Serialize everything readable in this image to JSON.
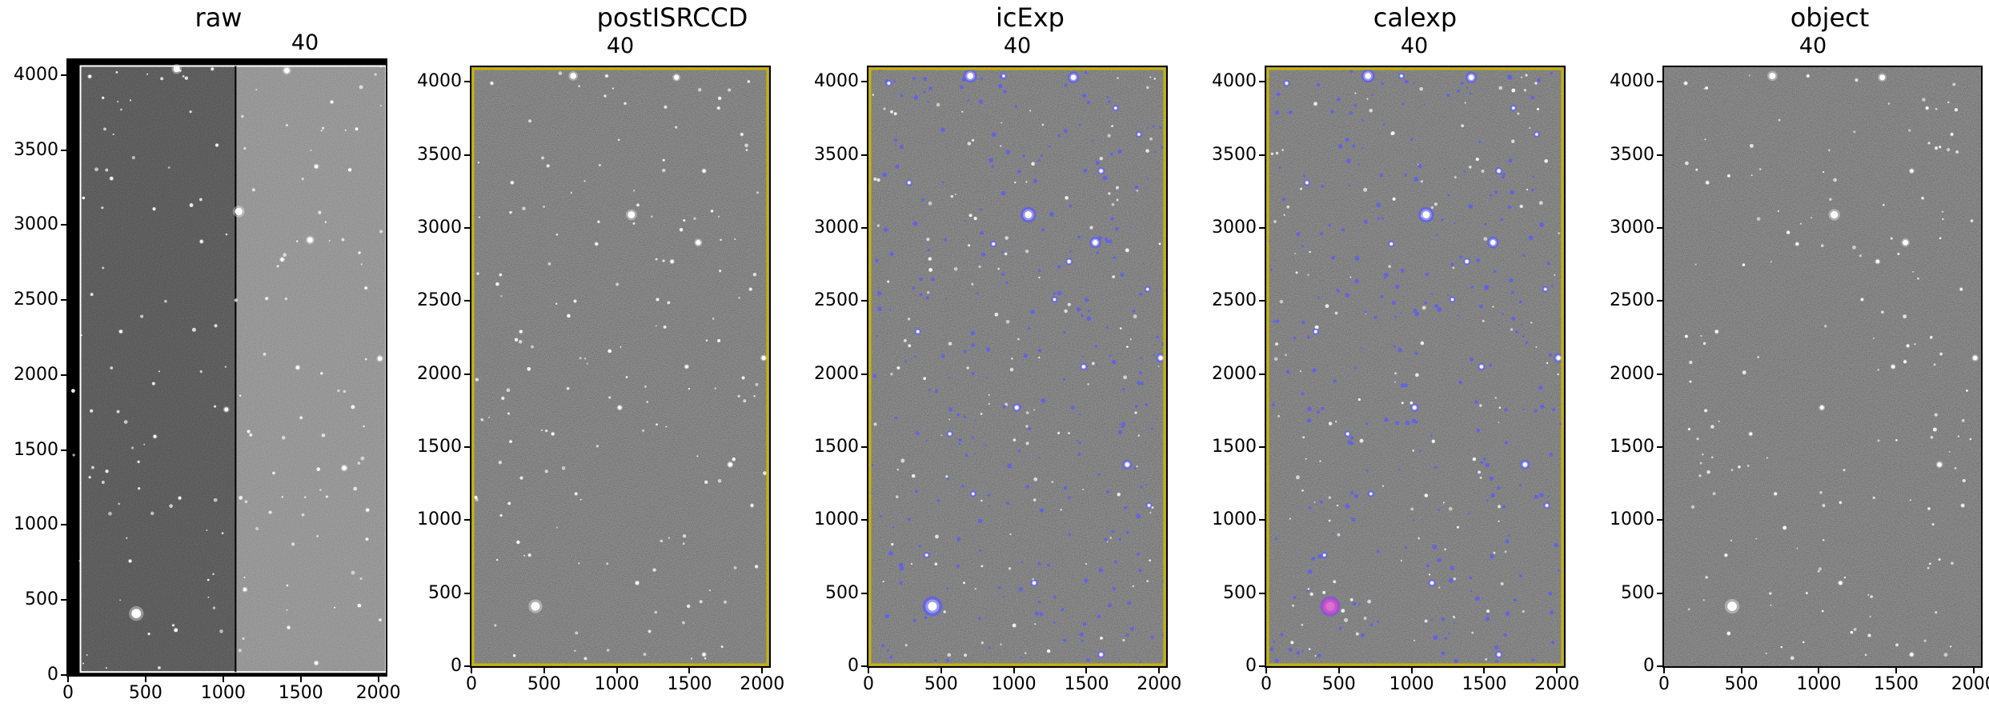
{
  "figure": {
    "panels": [
      {
        "id": "raw",
        "title": "raw",
        "ccd_label": "40",
        "x_ticks": [
          "0",
          "500",
          "1000",
          "1500",
          "2000"
        ],
        "y_ticks": [
          "0",
          "500",
          "1000",
          "1500",
          "2000",
          "2500",
          "3000",
          "3500",
          "4000"
        ],
        "overlay": "none",
        "background": "split-amplifiers"
      },
      {
        "id": "postISRCCD",
        "title": "postISRCCD",
        "ccd_label": "40",
        "x_ticks": [
          "0",
          "500",
          "1000",
          "1500",
          "2000"
        ],
        "y_ticks": [
          "0",
          "500",
          "1000",
          "1500",
          "2000",
          "2500",
          "3000",
          "3500",
          "4000"
        ],
        "overlay": "yellow-border",
        "background": "noise"
      },
      {
        "id": "icExp",
        "title": "icExp",
        "ccd_label": "40",
        "x_ticks": [
          "0",
          "500",
          "1000",
          "1500",
          "2000"
        ],
        "y_ticks": [
          "0",
          "500",
          "1000",
          "1500",
          "2000",
          "2500",
          "3000",
          "3500",
          "4000"
        ],
        "overlay": "blue-detections",
        "background": "noise"
      },
      {
        "id": "calexp",
        "title": "calexp",
        "ccd_label": "40",
        "x_ticks": [
          "0",
          "500",
          "1000",
          "1500",
          "2000"
        ],
        "y_ticks": [
          "0",
          "500",
          "1000",
          "1500",
          "2000",
          "2500",
          "3000",
          "3500",
          "4000"
        ],
        "overlay": "blue-detections-plus-magenta",
        "background": "noise"
      },
      {
        "id": "object",
        "title": "object",
        "ccd_label": "40",
        "x_ticks": [
          "0",
          "500",
          "1000",
          "1500",
          "2000"
        ],
        "y_ticks": [
          "0",
          "500",
          "1000",
          "1500",
          "2000",
          "2500",
          "3000",
          "3500",
          "4000"
        ],
        "overlay": "none",
        "background": "noise"
      }
    ],
    "axis_range": {
      "x": [
        0,
        2048
      ],
      "y": [
        0,
        4100
      ]
    },
    "colors": {
      "detection_mask": "#5a5aff",
      "edge_mask": "#c8b400",
      "saturated_mask": "#d040c0",
      "sky_dark": "#3a3a3a",
      "sky_light": "#8a8a8a"
    },
    "stars": [
      {
        "x": 440,
        "y": 410,
        "r": 38
      },
      {
        "x": 1100,
        "y": 3090,
        "r": 30
      },
      {
        "x": 700,
        "y": 4040,
        "r": 26
      },
      {
        "x": 1410,
        "y": 4030,
        "r": 22
      },
      {
        "x": 1560,
        "y": 2900,
        "r": 22
      },
      {
        "x": 2010,
        "y": 2110,
        "r": 18
      },
      {
        "x": 1780,
        "y": 1380,
        "r": 18
      },
      {
        "x": 1020,
        "y": 1770,
        "r": 16
      },
      {
        "x": 1380,
        "y": 2770,
        "r": 14
      },
      {
        "x": 1600,
        "y": 3390,
        "r": 14
      },
      {
        "x": 1140,
        "y": 570,
        "r": 14
      },
      {
        "x": 1600,
        "y": 80,
        "r": 14
      },
      {
        "x": 1480,
        "y": 2050,
        "r": 14
      },
      {
        "x": 280,
        "y": 3310,
        "r": 12
      },
      {
        "x": 560,
        "y": 1590,
        "r": 12
      },
      {
        "x": 860,
        "y": 2890,
        "r": 12
      },
      {
        "x": 1930,
        "y": 1100,
        "r": 12
      },
      {
        "x": 340,
        "y": 2290,
        "r": 12
      },
      {
        "x": 140,
        "y": 3990,
        "r": 12
      },
      {
        "x": 720,
        "y": 1180,
        "r": 11
      },
      {
        "x": 1700,
        "y": 3820,
        "r": 11
      },
      {
        "x": 400,
        "y": 760,
        "r": 11
      },
      {
        "x": 1280,
        "y": 2510,
        "r": 10
      },
      {
        "x": 1860,
        "y": 3640,
        "r": 10
      },
      {
        "x": 1920,
        "y": 2580,
        "r": 10
      },
      {
        "x": 930,
        "y": 4040,
        "r": 10
      }
    ]
  }
}
